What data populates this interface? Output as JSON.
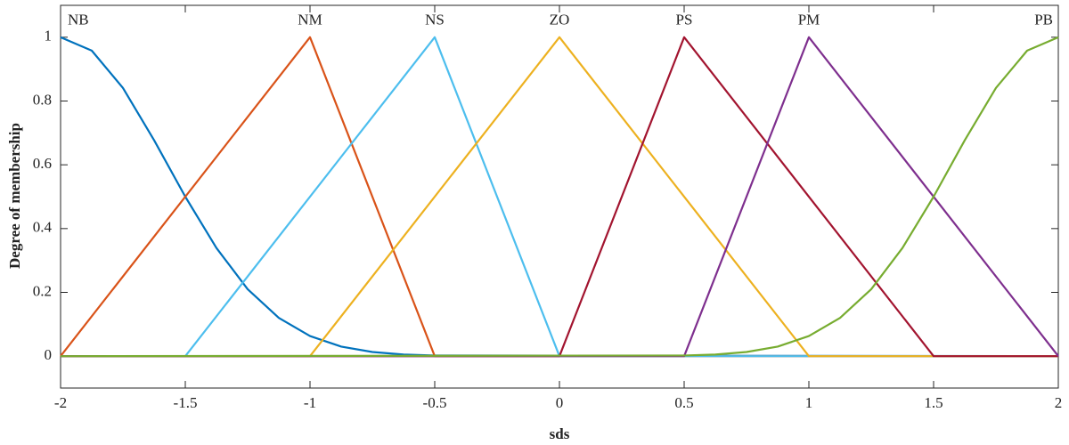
{
  "chart_data": {
    "type": "line",
    "x_label": "sds",
    "y_label": "Degree of membership",
    "xlim": [
      -2,
      2
    ],
    "ylim": [
      -0.1,
      1.1
    ],
    "xticks": [
      -2,
      -1.5,
      -1,
      -0.5,
      0,
      0.5,
      1,
      1.5,
      2
    ],
    "yticks": [
      0,
      0.2,
      0.4,
      0.6,
      0.8,
      1
    ],
    "series": [
      {
        "name": "NB",
        "color": "#0072BD",
        "x": [
          -2,
          -1.875,
          -1.75,
          -1.625,
          -1.5,
          -1.375,
          -1.25,
          -1.125,
          -1,
          -0.875,
          -0.75,
          -0.625,
          -0.5,
          2
        ],
        "values": [
          1,
          0.958,
          0.841,
          0.677,
          0.5,
          0.339,
          0.21,
          0.12,
          0.063,
          0.03,
          0.013,
          0.005,
          0.002,
          0
        ]
      },
      {
        "name": "NM",
        "color": "#D95319",
        "x": [
          -2,
          -1,
          -0.5,
          2
        ],
        "values": [
          0,
          1,
          0,
          0
        ]
      },
      {
        "name": "NS",
        "color": "#4DBEEE",
        "x": [
          -2,
          -1.5,
          -0.5,
          0,
          2
        ],
        "values": [
          0,
          0,
          1,
          0,
          0
        ]
      },
      {
        "name": "ZO",
        "color": "#EDB120",
        "x": [
          -2,
          -1,
          0,
          1,
          2
        ],
        "values": [
          0,
          0,
          1,
          0,
          0
        ]
      },
      {
        "name": "PS",
        "color": "#A2142F",
        "x": [
          -2,
          0,
          0.5,
          1.5,
          2
        ],
        "values": [
          0,
          0,
          1,
          0,
          0
        ]
      },
      {
        "name": "PM",
        "color": "#7E2F8E",
        "x": [
          -2,
          0.5,
          1,
          2
        ],
        "values": [
          0,
          0,
          1,
          0
        ]
      },
      {
        "name": "PB",
        "color": "#77AC30",
        "x": [
          -2,
          0.5,
          0.625,
          0.75,
          0.875,
          1,
          1.125,
          1.25,
          1.375,
          1.5,
          1.625,
          1.75,
          1.875,
          2
        ],
        "values": [
          0,
          0.002,
          0.005,
          0.013,
          0.03,
          0.063,
          0.12,
          0.21,
          0.339,
          0.5,
          0.677,
          0.841,
          0.958,
          1
        ]
      }
    ]
  }
}
